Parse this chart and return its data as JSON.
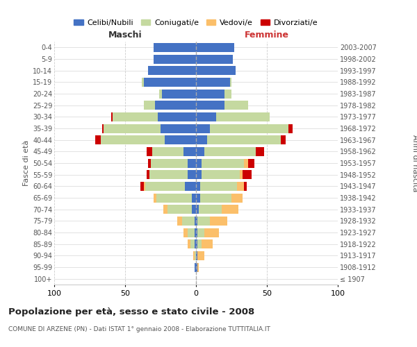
{
  "age_groups": [
    "100+",
    "95-99",
    "90-94",
    "85-89",
    "80-84",
    "75-79",
    "70-74",
    "65-69",
    "60-64",
    "55-59",
    "50-54",
    "45-49",
    "40-44",
    "35-39",
    "30-34",
    "25-29",
    "20-24",
    "15-19",
    "10-14",
    "5-9",
    "0-4"
  ],
  "birth_years": [
    "≤ 1907",
    "1908-1912",
    "1913-1917",
    "1918-1922",
    "1923-1927",
    "1928-1932",
    "1933-1937",
    "1938-1942",
    "1943-1947",
    "1948-1952",
    "1953-1957",
    "1958-1962",
    "1963-1967",
    "1968-1972",
    "1973-1977",
    "1978-1982",
    "1983-1987",
    "1988-1992",
    "1993-1997",
    "1998-2002",
    "2003-2007"
  ],
  "colors": {
    "celibi": "#4472C4",
    "coniugati": "#C5D9A0",
    "vedovi": "#FBBF6A",
    "divorziati": "#CC0000"
  },
  "maschi": {
    "celibi": [
      0,
      1,
      0,
      1,
      1,
      1,
      3,
      3,
      8,
      6,
      6,
      9,
      22,
      25,
      27,
      29,
      24,
      37,
      34,
      30,
      30
    ],
    "coniugati": [
      0,
      0,
      1,
      3,
      5,
      9,
      17,
      25,
      28,
      27,
      26,
      22,
      45,
      40,
      32,
      8,
      2,
      1,
      0,
      0,
      0
    ],
    "vedovi": [
      0,
      0,
      1,
      2,
      3,
      3,
      3,
      2,
      1,
      0,
      0,
      0,
      0,
      0,
      0,
      0,
      0,
      0,
      0,
      0,
      0
    ],
    "divorziati": [
      0,
      0,
      0,
      0,
      0,
      0,
      0,
      0,
      2,
      2,
      2,
      4,
      4,
      1,
      1,
      0,
      0,
      0,
      0,
      0,
      0
    ]
  },
  "femmine": {
    "nubili": [
      0,
      1,
      1,
      1,
      1,
      1,
      2,
      3,
      3,
      4,
      4,
      6,
      8,
      10,
      14,
      20,
      20,
      24,
      28,
      26,
      27
    ],
    "coniugate": [
      0,
      0,
      0,
      3,
      5,
      9,
      16,
      22,
      26,
      27,
      30,
      36,
      52,
      55,
      38,
      17,
      5,
      1,
      0,
      0,
      0
    ],
    "vedove": [
      0,
      1,
      5,
      8,
      10,
      12,
      12,
      8,
      5,
      2,
      3,
      0,
      0,
      0,
      0,
      0,
      0,
      0,
      0,
      0,
      0
    ],
    "divorziate": [
      0,
      0,
      0,
      0,
      0,
      0,
      0,
      0,
      2,
      6,
      4,
      6,
      3,
      3,
      0,
      0,
      0,
      0,
      0,
      0,
      0
    ]
  },
  "xlim": 100,
  "title": "Popolazione per età, sesso e stato civile - 2008",
  "subtitle": "COMUNE DI ARZENE (PN) - Dati ISTAT 1° gennaio 2008 - Elaborazione TUTTITALIA.IT",
  "ylabel_left": "Fasce di età",
  "ylabel_right": "Anni di nascita",
  "xlabel_left": "Maschi",
  "xlabel_right": "Femmine",
  "legend_labels": [
    "Celibi/Nubili",
    "Coniugati/e",
    "Vedovi/e",
    "Divorziati/e"
  ],
  "background_color": "#FFFFFF",
  "grid_color": "#CCCCCC"
}
